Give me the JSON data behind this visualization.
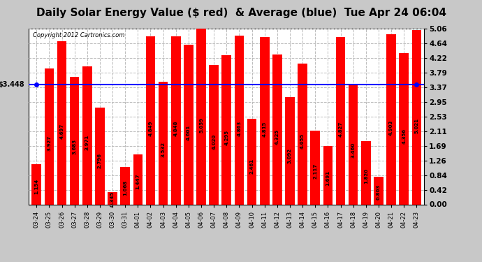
{
  "title": "Daily Solar Energy Value ($ red)  & Average (blue)  Tue Apr 24 06:04",
  "copyright": "Copyright 2012 Cartronics.com",
  "categories": [
    "03-24",
    "03-25",
    "03-26",
    "03-27",
    "03-28",
    "03-29",
    "03-30",
    "03-31",
    "04-01",
    "04-02",
    "04-03",
    "04-04",
    "04-05",
    "04-06",
    "04-07",
    "04-08",
    "04-09",
    "04-10",
    "04-11",
    "04-12",
    "04-13",
    "04-14",
    "04-15",
    "04-16",
    "04-17",
    "04-18",
    "04-19",
    "04-20",
    "04-21",
    "04-22",
    "04-23"
  ],
  "values": [
    1.154,
    3.927,
    4.697,
    3.683,
    3.971,
    2.796,
    0.345,
    1.068,
    1.447,
    4.849,
    3.532,
    4.848,
    4.601,
    5.059,
    4.02,
    4.295,
    4.863,
    2.461,
    4.815,
    4.325,
    3.092,
    4.055,
    2.117,
    1.691,
    4.827,
    3.46,
    1.82,
    0.803,
    4.903,
    4.356,
    5.021
  ],
  "average": 3.448,
  "bar_color": "#ff0000",
  "avg_line_color": "#0000ff",
  "bg_color": "#c8c8c8",
  "plot_bg_color": "#ffffff",
  "grid_color": "#d0d0d0",
  "title_fontsize": 11,
  "ylim": [
    0.0,
    5.06
  ],
  "yticks": [
    0.0,
    0.42,
    0.84,
    1.26,
    1.69,
    2.11,
    2.53,
    2.95,
    3.37,
    3.79,
    4.22,
    4.64,
    5.06
  ]
}
